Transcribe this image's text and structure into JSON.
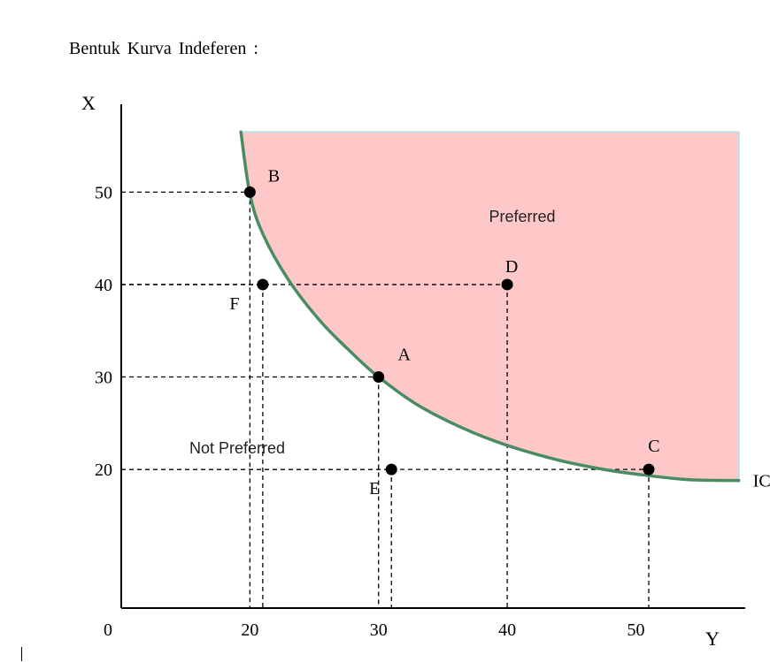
{
  "document": {
    "heading": "Bentuk Kurva Indeferen :"
  },
  "chart_data": {
    "type": "scatter",
    "xlabel": "Y",
    "ylabel": "X",
    "origin_label": "0",
    "xticks": [
      20,
      30,
      40,
      50
    ],
    "yticks": [
      20,
      30,
      40,
      50
    ],
    "xlim": [
      10,
      58.5
    ],
    "ylim": [
      5,
      59.5
    ],
    "curve": {
      "name": "IC",
      "color": "#4a8c62",
      "points": [
        [
          19.3,
          56.5
        ],
        [
          20,
          49.8
        ],
        [
          21,
          45.5
        ],
        [
          23,
          40.5
        ],
        [
          25.5,
          36
        ],
        [
          28,
          32.5
        ],
        [
          30,
          30
        ],
        [
          33,
          27
        ],
        [
          36.5,
          24.5
        ],
        [
          40,
          22.6
        ],
        [
          44,
          21
        ],
        [
          47.5,
          20
        ],
        [
          50,
          19.5
        ],
        [
          54,
          18.9
        ],
        [
          58,
          18.8
        ]
      ]
    },
    "preferred_region": {
      "label": "Preferred",
      "color": "#ffc8c8",
      "edge_color": "#b8e0e6"
    },
    "not_preferred_label": "Not Preferred",
    "points": [
      {
        "label": "B",
        "x": 20,
        "y": 50
      },
      {
        "label": "F",
        "x": 21,
        "y": 40
      },
      {
        "label": "D",
        "x": 40,
        "y": 40
      },
      {
        "label": "A",
        "x": 30,
        "y": 30
      },
      {
        "label": "E",
        "x": 31,
        "y": 20
      },
      {
        "label": "C",
        "x": 51,
        "y": 20
      }
    ]
  }
}
